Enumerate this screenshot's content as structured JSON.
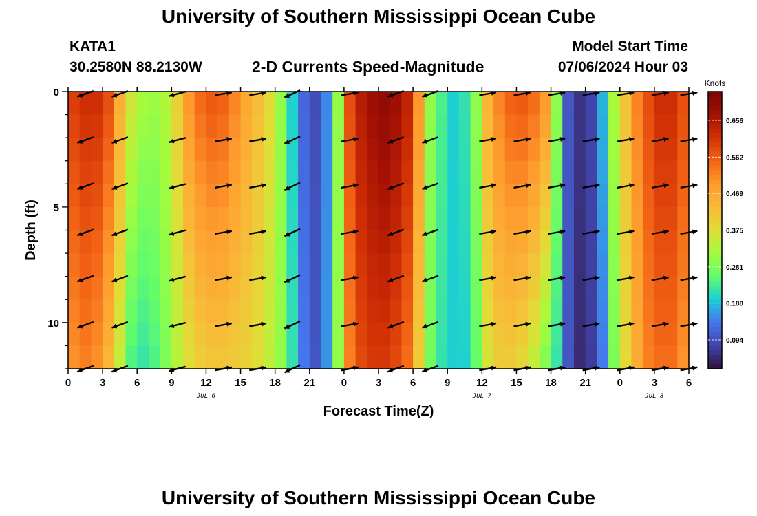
{
  "header": {
    "title": "University of Southern Mississippi Ocean Cube",
    "station": "KATA1",
    "coords": "30.2580N  88.2130W",
    "chart_title": "2-D Currents Speed-Magnitude",
    "model_start_label": "Model Start Time",
    "model_start_value": "07/06/2024 Hour 03"
  },
  "footer": {
    "title": "University of Southern Mississippi Ocean Cube"
  },
  "colors": {
    "ramp": [
      "#30123b",
      "#4145ab",
      "#4675ed",
      "#1bcfd4",
      "#61fc6c",
      "#a4fc3c",
      "#e1dd37",
      "#f9ba38",
      "#fe9b2d",
      "#f36315",
      "#d23105",
      "#a41004",
      "#7a0403"
    ]
  },
  "chart_data": {
    "type": "heatmap",
    "title": "2-D Currents Speed-Magnitude",
    "xlabel": "Forecast Time(Z)",
    "ylabel": "Depth (ft)",
    "x_ticks": [
      "0",
      "3",
      "6",
      "9",
      "12",
      "15",
      "18",
      "21",
      "0",
      "3",
      "6",
      "9",
      "12",
      "15",
      "18",
      "21",
      "0",
      "3",
      "6"
    ],
    "x_hours": [
      0,
      3,
      6,
      9,
      12,
      15,
      18,
      21,
      24,
      27,
      30,
      33,
      36,
      39,
      42,
      45,
      48,
      51,
      54
    ],
    "x_range_hours": [
      0,
      54
    ],
    "date_labels": [
      {
        "text": "JUL 6",
        "hour": 12
      },
      {
        "text": "JUL 7",
        "hour": 36
      },
      {
        "text": "JUL 8",
        "hour": 51
      }
    ],
    "y_ticks": [
      "0",
      "5",
      "10"
    ],
    "y_tick_values": [
      0,
      5,
      10
    ],
    "y_range_ft": [
      0,
      12
    ],
    "colorbar": {
      "label": "Knots",
      "ticks": [
        "0.656",
        "0.562",
        "0.469",
        "0.375",
        "0.281",
        "0.188",
        "0.094"
      ],
      "tick_values": [
        0.656,
        0.562,
        0.469,
        0.375,
        0.281,
        0.188,
        0.094
      ],
      "range": [
        0.02,
        0.73
      ]
    },
    "speed_profile_hours": [
      0,
      1,
      2,
      3,
      4,
      5,
      6,
      7,
      8,
      9,
      10,
      11,
      12,
      13,
      14,
      15,
      16,
      17,
      18,
      19,
      20,
      21,
      22,
      23,
      24,
      25,
      26,
      27,
      28,
      29,
      30,
      31,
      32,
      33,
      34,
      35,
      36,
      37,
      38,
      39,
      40,
      41,
      42,
      43,
      44,
      45,
      46,
      47,
      48,
      49,
      50,
      51,
      52,
      53,
      54
    ],
    "speed_surface_knots": [
      0.6,
      0.62,
      0.62,
      0.58,
      0.46,
      0.36,
      0.32,
      0.31,
      0.33,
      0.4,
      0.5,
      0.55,
      0.57,
      0.56,
      0.52,
      0.47,
      0.43,
      0.38,
      0.3,
      0.2,
      0.12,
      0.09,
      0.15,
      0.3,
      0.58,
      0.65,
      0.68,
      0.7,
      0.68,
      0.64,
      0.5,
      0.3,
      0.24,
      0.2,
      0.22,
      0.3,
      0.45,
      0.52,
      0.56,
      0.57,
      0.55,
      0.5,
      0.3,
      0.1,
      0.06,
      0.08,
      0.18,
      0.32,
      0.42,
      0.52,
      0.58,
      0.62,
      0.62,
      0.58,
      0.45
    ],
    "speed_bottom_knots": [
      0.5,
      0.52,
      0.5,
      0.44,
      0.34,
      0.24,
      0.22,
      0.24,
      0.28,
      0.33,
      0.37,
      0.4,
      0.41,
      0.41,
      0.4,
      0.39,
      0.37,
      0.34,
      0.3,
      0.22,
      0.14,
      0.1,
      0.16,
      0.3,
      0.52,
      0.58,
      0.6,
      0.6,
      0.58,
      0.54,
      0.4,
      0.27,
      0.22,
      0.2,
      0.2,
      0.26,
      0.36,
      0.4,
      0.4,
      0.38,
      0.34,
      0.28,
      0.22,
      0.1,
      0.05,
      0.07,
      0.14,
      0.28,
      0.38,
      0.46,
      0.52,
      0.54,
      0.54,
      0.5,
      0.4
    ],
    "arrow_hours": [
      1.5,
      4.5,
      9.5,
      13.5,
      16.5,
      19.5,
      24.5,
      28.5,
      31.5,
      36.5,
      39.5,
      42.5,
      45.5,
      48.5,
      51.5,
      54
    ],
    "arrow_depths_ft": [
      0.1,
      2.1,
      4.1,
      6.1,
      8.1,
      10.1,
      12
    ],
    "arrow_angles_deg": [
      200,
      200,
      195,
      10,
      10,
      205,
      10,
      200,
      200,
      10,
      10,
      10,
      10,
      10,
      10,
      10
    ]
  }
}
